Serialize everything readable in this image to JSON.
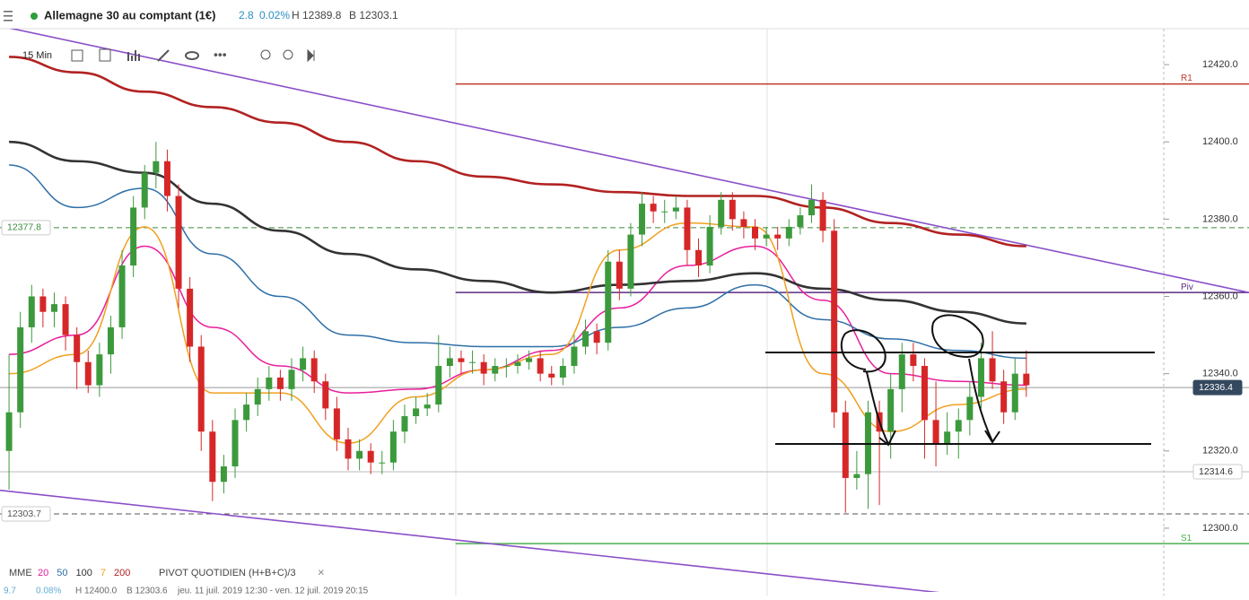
{
  "header": {
    "instrument": "Allemagne 30 au comptant (1€)",
    "change": 2.8,
    "change_pct": "0.02%",
    "high": "H 12389.8",
    "low": "B 12303.1"
  },
  "toolbar": {
    "interval": "15 Min"
  },
  "chart_data": {
    "type": "candlestick",
    "xlim": [
      -0.8,
      109.7
    ],
    "ylim": [
      12283.5,
      12429.3
    ],
    "yticks": [
      {
        "value": 12420,
        "label": "12420.0"
      },
      {
        "value": 12400,
        "label": "12400.0"
      },
      {
        "value": 12380,
        "label": "12380.0"
      },
      {
        "value": 12360,
        "label": "12360.0"
      },
      {
        "value": 12340,
        "label": "12340.0"
      },
      {
        "value": 12320,
        "label": "12320.0"
      },
      {
        "value": 12300,
        "label": "12300.0"
      }
    ],
    "up_color": "#3c9a3c",
    "down_color": "#d62728",
    "candles": [
      [
        12320,
        12345,
        12310,
        12330
      ],
      [
        12330,
        12356,
        12326,
        12352
      ],
      [
        12352,
        12363,
        12348,
        12360
      ],
      [
        12360,
        12362,
        12352,
        12356
      ],
      [
        12356,
        12361,
        12352,
        12358
      ],
      [
        12358,
        12360,
        12346,
        12350
      ],
      [
        12350,
        12352,
        12336,
        12343
      ],
      [
        12343,
        12346,
        12335,
        12337
      ],
      [
        12337,
        12348,
        12334,
        12345
      ],
      [
        12345,
        12355,
        12340,
        12352
      ],
      [
        12352,
        12372,
        12349,
        12368
      ],
      [
        12368,
        12386,
        12365,
        12383
      ],
      [
        12383,
        12394,
        12380,
        12392
      ],
      [
        12392,
        12400,
        12388,
        12395
      ],
      [
        12395,
        12398,
        12382,
        12386
      ],
      [
        12386,
        12389,
        12357,
        12362
      ],
      [
        12362,
        12365,
        12343,
        12347
      ],
      [
        12347,
        12350,
        12320,
        12325
      ],
      [
        12325,
        12328,
        12307,
        12312
      ],
      [
        12312,
        12319,
        12309,
        12316
      ],
      [
        12316,
        12331,
        12313,
        12328
      ],
      [
        12328,
        12335,
        12325,
        12332
      ],
      [
        12332,
        12339,
        12329,
        12336
      ],
      [
        12336,
        12342,
        12333,
        12339
      ],
      [
        12339,
        12341,
        12333,
        12336
      ],
      [
        12336,
        12344,
        12333,
        12341
      ],
      [
        12341,
        12347,
        12338,
        12344
      ],
      [
        12344,
        12346,
        12335,
        12338
      ],
      [
        12338,
        12340,
        12328,
        12331
      ],
      [
        12331,
        12334,
        12320,
        12323
      ],
      [
        12323,
        12326,
        12315,
        12318
      ],
      [
        12318,
        12323,
        12315,
        12320
      ],
      [
        12320,
        12322,
        12314,
        12317
      ],
      [
        12317,
        12320,
        12314,
        12317
      ],
      [
        12317,
        12328,
        12315,
        12325
      ],
      [
        12325,
        12332,
        12322,
        12329
      ],
      [
        12329,
        12334,
        12327,
        12331
      ],
      [
        12331,
        12335,
        12329,
        12332
      ],
      [
        12332,
        12350,
        12330,
        12342
      ],
      [
        12342,
        12347,
        12339,
        12344
      ],
      [
        12344,
        12346,
        12340,
        12343
      ],
      [
        12343,
        12346,
        12340,
        12343
      ],
      [
        12343,
        12345,
        12337,
        12340
      ],
      [
        12340,
        12344,
        12338,
        12342
      ],
      [
        12342,
        12344,
        12339,
        12342
      ],
      [
        12342,
        12345,
        12340,
        12343
      ],
      [
        12343,
        12346,
        12341,
        12344
      ],
      [
        12344,
        12346,
        12338,
        12340
      ],
      [
        12340,
        12342,
        12337,
        12339
      ],
      [
        12339,
        12344,
        12337,
        12342
      ],
      [
        12342,
        12350,
        12340,
        12347
      ],
      [
        12347,
        12354,
        12345,
        12351
      ],
      [
        12351,
        12353,
        12345,
        12348
      ],
      [
        12348,
        12372,
        12346,
        12369
      ],
      [
        12369,
        12372,
        12359,
        12362
      ],
      [
        12362,
        12379,
        12360,
        12376
      ],
      [
        12376,
        12387,
        12373,
        12384
      ],
      [
        12384,
        12386,
        12379,
        12382
      ],
      [
        12382,
        12385,
        12379,
        12382
      ],
      [
        12382,
        12386,
        12380,
        12383
      ],
      [
        12383,
        12385,
        12368,
        12372
      ],
      [
        12372,
        12375,
        12365,
        12368
      ],
      [
        12368,
        12381,
        12366,
        12378
      ],
      [
        12378,
        12387,
        12376,
        12385
      ],
      [
        12385,
        12387,
        12377,
        12380
      ],
      [
        12380,
        12382,
        12375,
        12378
      ],
      [
        12378,
        12380,
        12372,
        12375
      ],
      [
        12375,
        12378,
        12373,
        12376
      ],
      [
        12376,
        12378,
        12372,
        12375
      ],
      [
        12375,
        12380,
        12373,
        12378
      ],
      [
        12378,
        12383,
        12376,
        12381
      ],
      [
        12381,
        12389,
        12379,
        12385
      ],
      [
        12385,
        12387,
        12374,
        12377
      ],
      [
        12377,
        12380,
        12326,
        12330
      ],
      [
        12330,
        12333,
        12304,
        12313
      ],
      [
        12313,
        12320,
        12310,
        12314
      ],
      [
        12314,
        12333,
        12305,
        12330
      ],
      [
        12330,
        12333,
        12306,
        12325
      ],
      [
        12325,
        12340,
        12318,
        12336
      ],
      [
        12336,
        12348,
        12330,
        12345
      ],
      [
        12345,
        12348,
        12338,
        12342
      ],
      [
        12342,
        12344,
        12318,
        12328
      ],
      [
        12328,
        12338,
        12316,
        12322
      ],
      [
        12322,
        12330,
        12319,
        12325
      ],
      [
        12325,
        12331,
        12318,
        12328
      ],
      [
        12328,
        12338,
        12324,
        12334
      ],
      [
        12334,
        12348,
        12331,
        12344
      ],
      [
        12344,
        12351,
        12336,
        12338
      ],
      [
        12338,
        12341,
        12327,
        12330
      ],
      [
        12330,
        12344,
        12328,
        12340
      ],
      [
        12340,
        12346,
        12334,
        12337
      ]
    ],
    "legend_title": "MME",
    "series": [
      {
        "name": "20",
        "color": "#e91e9c",
        "x": [
          0,
          6,
          12,
          18,
          24,
          30,
          36,
          42,
          48,
          54,
          60,
          66,
          72,
          78,
          84,
          90
        ],
        "values": [
          12345,
          12350,
          12373,
          12352,
          12342,
          12335,
          12336,
          12341,
          12346,
          12357,
          12368,
          12373,
          12359,
          12340,
          12338,
          12337
        ]
      },
      {
        "name": "50",
        "color": "#2e6fa7",
        "x": [
          0,
          6,
          12,
          18,
          24,
          30,
          36,
          42,
          48,
          54,
          60,
          66,
          72,
          78,
          84,
          90
        ],
        "values": [
          12394,
          12383,
          12388,
          12371,
          12360,
          12350,
          12348,
          12347,
          12347,
          12352,
          12357,
          12363,
          12354,
          12349,
          12346,
          12344
        ]
      },
      {
        "name": "100",
        "color": "#333333",
        "x": [
          0,
          6,
          12,
          18,
          24,
          30,
          36,
          42,
          48,
          54,
          60,
          66,
          72,
          78,
          84,
          90
        ],
        "values": [
          12400,
          12395,
          12392,
          12384,
          12377,
          12371,
          12367,
          12364,
          12361,
          12363,
          12364,
          12366,
          12362,
          12359,
          12356,
          12353
        ]
      },
      {
        "name": "7",
        "color": "#f0a020",
        "x": [
          0,
          6,
          12,
          18,
          24,
          30,
          36,
          42,
          48,
          54,
          60,
          66,
          72,
          78,
          84,
          90
        ],
        "values": [
          12340,
          12345,
          12378,
          12335,
          12335,
          12322,
          12334,
          12341,
          12345,
          12372,
          12379,
          12378,
          12340,
          12325,
          12332,
          12336
        ]
      },
      {
        "name": "200",
        "color": "#b22222",
        "x": [
          0,
          6,
          12,
          18,
          24,
          30,
          36,
          42,
          48,
          54,
          60,
          66,
          72,
          78,
          84,
          90
        ],
        "values": [
          12422,
          12418,
          12413,
          12409,
          12405,
          12400,
          12395,
          12391,
          12389,
          12387,
          12386,
          12386,
          12383,
          12379,
          12376,
          12373
        ]
      }
    ],
    "trendlines": [
      {
        "color": "#8a4fc8",
        "x": [
          -0.8,
          109.7
        ],
        "values": [
          12430,
          12361
        ]
      },
      {
        "color": "#8a4fc8",
        "x": [
          -0.8,
          109.7
        ],
        "values": [
          12309.8,
          12274.6
        ]
      }
    ],
    "indicator": "PIVOT QUOTIDIEN (H+B+C)/3",
    "levels": [
      {
        "name": "R1",
        "value": 12415,
        "color": "#c0392b",
        "from": 39.5
      },
      {
        "name": "Piv",
        "value": 12361,
        "color": "#5b2c83",
        "from": 39.5
      },
      {
        "name": "S1",
        "value": 12296,
        "color": "#4caf50",
        "from": 39.5
      }
    ],
    "badges": [
      {
        "value": 12377.8,
        "color": "#3a8a3a",
        "dashed": true,
        "side": "left"
      },
      {
        "value": 12303.7,
        "color": "#555555",
        "dashed": true,
        "side": "left"
      },
      {
        "value": 12314.6,
        "color": "#bbbbbb",
        "dashed": false,
        "side": "right"
      },
      {
        "value": 12336.4,
        "color": "#999999",
        "dashed": false,
        "side": "right",
        "filled": true
      }
    ]
  },
  "legend_close": "×",
  "status": {
    "change": 9.7,
    "change_pct": "0.08%",
    "high": "H 12400.0",
    "low": "B 12303.6",
    "range": "jeu. 11 juil. 2019 12:30 - ven. 12 juil. 2019 20:15"
  }
}
